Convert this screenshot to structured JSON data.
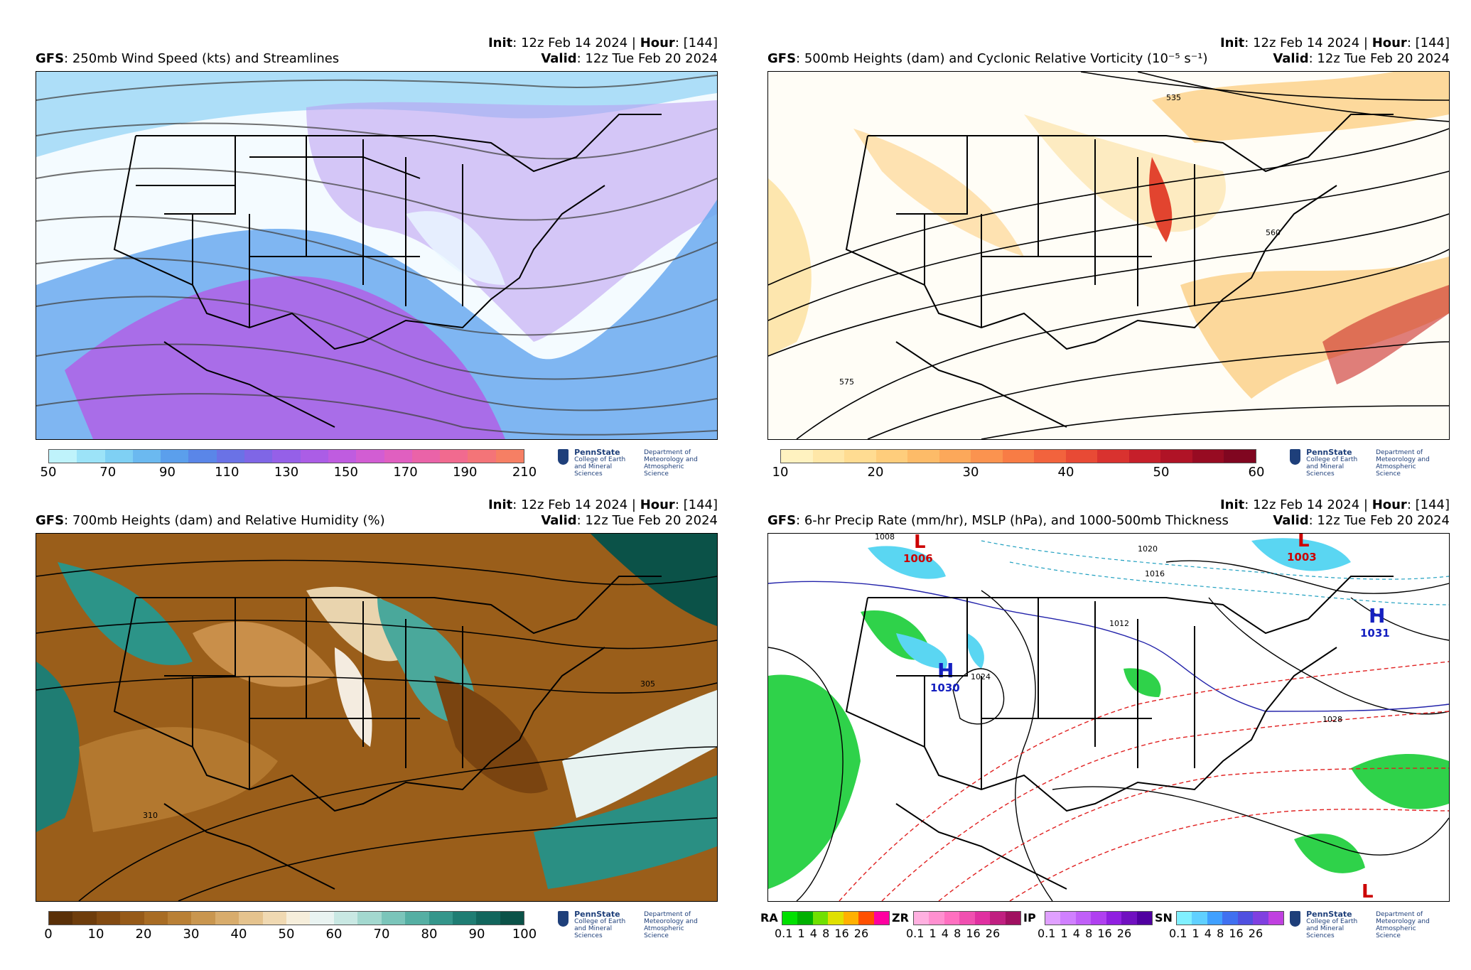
{
  "panels": [
    {
      "id": "wind250",
      "init_label": "Init",
      "init_value": ": 12z Feb 14 2024 | ",
      "hour_label": "Hour",
      "hour_value": ": [144]",
      "valid_label": "Valid",
      "valid_value": ": 12z Tue Feb 20 2024",
      "model": "GFS",
      "title": ": 250mb Wind Speed (kts) and Streamlines",
      "colorbar": {
        "colors": [
          "#bff3fb",
          "#9ce3f8",
          "#7fd0f4",
          "#6bb9f0",
          "#5b9fec",
          "#5a86e8",
          "#6a72e6",
          "#7f66e6",
          "#9560e8",
          "#ab5de6",
          "#bf5ce0",
          "#d25dd3",
          "#e05fc0",
          "#ea63a8",
          "#f16a8f",
          "#f47478",
          "#f67f64"
        ],
        "ticks": [
          "50",
          "70",
          "90",
          "110",
          "130",
          "150",
          "170",
          "190",
          "210"
        ]
      }
    },
    {
      "id": "vort500",
      "init_label": "Init",
      "init_value": ": 12z Feb 14 2024 | ",
      "hour_label": "Hour",
      "hour_value": ": [144]",
      "valid_label": "Valid",
      "valid_value": ": 12z Tue Feb 20 2024",
      "model": "GFS",
      "title": ": 500mb Heights (dam) and Cyclonic Relative Vorticity (10⁻⁵ s⁻¹)",
      "contour_labels": [
        "535",
        "560",
        "575"
      ],
      "colorbar": {
        "colors": [
          "#fff2c0",
          "#ffe7a8",
          "#ffdc92",
          "#fecd7c",
          "#fdbb68",
          "#fca85a",
          "#fb934f",
          "#f87c45",
          "#f2633d",
          "#e84a35",
          "#d9322f",
          "#c61f2a",
          "#b01326",
          "#970b22",
          "#800620"
        ],
        "ticks": [
          "10",
          "20",
          "30",
          "40",
          "50",
          "60"
        ]
      }
    },
    {
      "id": "rh700",
      "init_label": "Init",
      "init_value": ": 12z Feb 14 2024 | ",
      "hour_label": "Hour",
      "hour_value": ": [144]",
      "valid_label": "Valid",
      "valid_value": ": 12z Tue Feb 20 2024",
      "model": "GFS",
      "title": ": 700mb Heights (dam) and Relative Humidity (%)",
      "contour_labels": [
        "305",
        "310"
      ],
      "colorbar": {
        "colors": [
          "#5a3008",
          "#6e3d0c",
          "#834b12",
          "#965a18",
          "#a86c24",
          "#b98036",
          "#c9964f",
          "#d8ac6c",
          "#e5c38e",
          "#f0d9b2",
          "#f6eedb",
          "#e9f3f1",
          "#c9e8e3",
          "#a3d8cf",
          "#7bc5ba",
          "#55afa3",
          "#35968b",
          "#1f7d73",
          "#12665d",
          "#0b5248"
        ],
        "ticks": [
          "0",
          "10",
          "20",
          "30",
          "40",
          "50",
          "60",
          "70",
          "80",
          "90",
          "100"
        ]
      }
    },
    {
      "id": "precip",
      "init_label": "Init",
      "init_value": ": 12z Feb 14 2024 | ",
      "hour_label": "Hour",
      "hour_value": ": [144]",
      "valid_label": "Valid",
      "valid_value": ": 12z Tue Feb 20 2024",
      "model": "GFS",
      "title": ": 6-hr Precip Rate (mm/hr), MSLP (hPa), and 1000-500mb Thickness",
      "centers": [
        {
          "type": "L",
          "value": "1006"
        },
        {
          "type": "L",
          "value": "1003"
        },
        {
          "type": "H",
          "value": "1030"
        },
        {
          "type": "H",
          "value": "1031"
        },
        {
          "type": "L",
          "value": ""
        }
      ],
      "isobar_labels": [
        "1008",
        "1012",
        "1016",
        "1020",
        "1024",
        "1028"
      ],
      "ptypes": [
        {
          "label": "RA",
          "colors": [
            "#00e000",
            "#00b000",
            "#70e000",
            "#e0e000",
            "#ffb000",
            "#ff5000",
            "#ff00a0"
          ]
        },
        {
          "label": "ZR",
          "colors": [
            "#ffb0e0",
            "#ff90d0",
            "#ff70c0",
            "#f050b0",
            "#e030a0",
            "#c02080",
            "#a01060"
          ]
        },
        {
          "label": "IP",
          "colors": [
            "#e0a0ff",
            "#d080ff",
            "#c060f8",
            "#b040f0",
            "#9020e0",
            "#7010c0",
            "#5000a0"
          ]
        },
        {
          "label": "SN",
          "colors": [
            "#80f0ff",
            "#60d0ff",
            "#40a0ff",
            "#4070f0",
            "#5050e0",
            "#8040e0",
            "#c040e0"
          ]
        }
      ],
      "ptype_ticks": "0.1 1 4 8 16 26"
    }
  ],
  "logo": {
    "line1": "PennState",
    "line2": "College of Earth",
    "line3": "and Mineral Sciences",
    "dept1": "Department of",
    "dept2": "Meteorology and",
    "dept3": "Atmospheric Science"
  }
}
